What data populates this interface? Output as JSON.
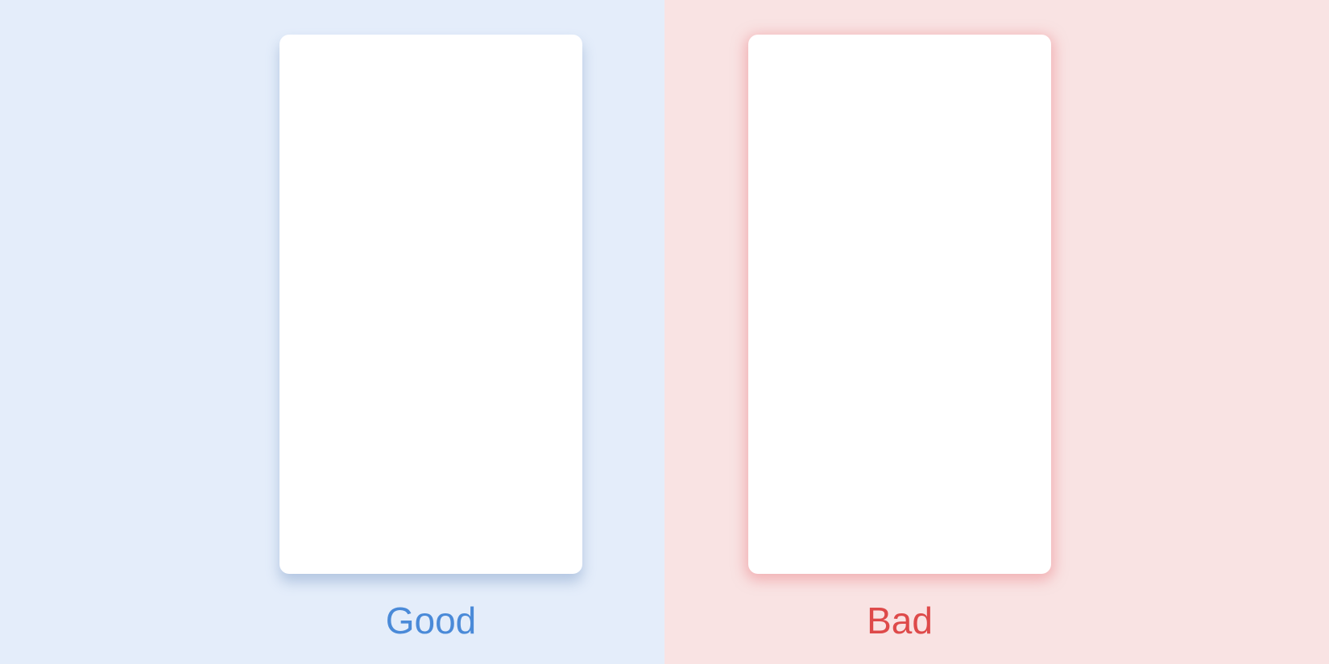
{
  "panels": [
    {
      "label": "Good",
      "label_color": "#4a8ad8",
      "background": "#e4edfa"
    },
    {
      "label": "Bad",
      "label_color": "#de4a4a",
      "background": "#f9e3e3"
    }
  ]
}
